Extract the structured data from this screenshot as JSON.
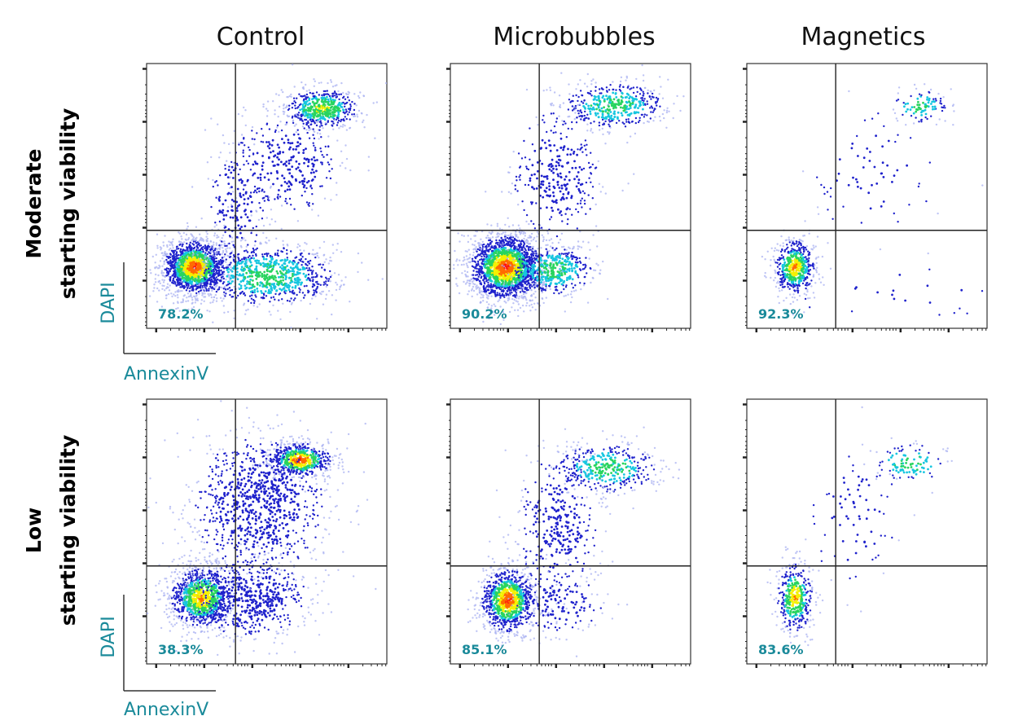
{
  "figure": {
    "columns": [
      "Control",
      "Microbubbles",
      "Magnetics"
    ],
    "rows": [
      {
        "line1": "Moderate",
        "line2": "starting viability"
      },
      {
        "line1": "Low",
        "line2": "starting viability"
      }
    ],
    "y_axis_label": "DAPI",
    "x_axis_label": "AnnexinV",
    "colors": {
      "label": "#1a8a9a",
      "low_density": "#aab2f2",
      "mid_density": "#1f22cc",
      "peak_ramp": [
        "#16c6e0",
        "#28d45e",
        "#f5f000",
        "#ff6a00",
        "#ff1010"
      ]
    }
  },
  "chart_data": [
    {
      "type": "scatter",
      "row": "Moderate starting viability",
      "column": "Control",
      "xlabel": "AnnexinV",
      "ylabel": "DAPI",
      "quadrant_annotation": "78.2%",
      "populations": [
        {
          "x": 0.2,
          "y": 0.23,
          "sx": 0.07,
          "sy": 0.055,
          "n": 1500,
          "hot": 4
        },
        {
          "x": 0.5,
          "y": 0.2,
          "sx": 0.15,
          "sy": 0.06,
          "n": 900,
          "hot": 1
        },
        {
          "x": 0.73,
          "y": 0.83,
          "sx": 0.08,
          "sy": 0.04,
          "n": 550,
          "hot": 2
        },
        {
          "x": 0.58,
          "y": 0.62,
          "sx": 0.12,
          "sy": 0.1,
          "n": 320,
          "hot": 0
        },
        {
          "x": 0.38,
          "y": 0.48,
          "sx": 0.07,
          "sy": 0.12,
          "n": 160,
          "hot": 0
        }
      ]
    },
    {
      "type": "scatter",
      "row": "Moderate starting viability",
      "column": "Microbubbles",
      "xlabel": "AnnexinV",
      "ylabel": "DAPI",
      "quadrant_annotation": "90.2%",
      "populations": [
        {
          "x": 0.23,
          "y": 0.23,
          "sx": 0.08,
          "sy": 0.065,
          "n": 1900,
          "hot": 4
        },
        {
          "x": 0.43,
          "y": 0.22,
          "sx": 0.09,
          "sy": 0.05,
          "n": 450,
          "hot": 1
        },
        {
          "x": 0.68,
          "y": 0.84,
          "sx": 0.11,
          "sy": 0.045,
          "n": 450,
          "hot": 1
        },
        {
          "x": 0.44,
          "y": 0.58,
          "sx": 0.1,
          "sy": 0.13,
          "n": 320,
          "hot": 0
        }
      ]
    },
    {
      "type": "scatter",
      "row": "Moderate starting viability",
      "column": "Magnetics",
      "xlabel": "AnnexinV",
      "ylabel": "DAPI",
      "quadrant_annotation": "92.3%",
      "populations": [
        {
          "x": 0.2,
          "y": 0.23,
          "sx": 0.045,
          "sy": 0.055,
          "n": 560,
          "hot": 3
        },
        {
          "x": 0.72,
          "y": 0.84,
          "sx": 0.06,
          "sy": 0.035,
          "n": 100,
          "hot": 1
        },
        {
          "x": 0.52,
          "y": 0.58,
          "sx": 0.14,
          "sy": 0.13,
          "n": 70,
          "hot": 0
        },
        {
          "x": 0.62,
          "y": 0.13,
          "sx": 0.26,
          "sy": 0.07,
          "n": 25,
          "hot": 0
        }
      ]
    },
    {
      "type": "scatter",
      "row": "Low starting viability",
      "column": "Control",
      "xlabel": "AnnexinV",
      "ylabel": "DAPI",
      "quadrant_annotation": "38.3%",
      "populations": [
        {
          "x": 0.23,
          "y": 0.25,
          "sx": 0.07,
          "sy": 0.06,
          "n": 1000,
          "hot": 3
        },
        {
          "x": 0.43,
          "y": 0.25,
          "sx": 0.13,
          "sy": 0.08,
          "n": 600,
          "hot": 0
        },
        {
          "x": 0.64,
          "y": 0.77,
          "sx": 0.07,
          "sy": 0.035,
          "n": 600,
          "hot": 4
        },
        {
          "x": 0.47,
          "y": 0.6,
          "sx": 0.15,
          "sy": 0.14,
          "n": 900,
          "hot": 0
        }
      ]
    },
    {
      "type": "scatter",
      "row": "Low starting viability",
      "column": "Microbubbles",
      "xlabel": "AnnexinV",
      "ylabel": "DAPI",
      "quadrant_annotation": "85.1%",
      "populations": [
        {
          "x": 0.24,
          "y": 0.24,
          "sx": 0.06,
          "sy": 0.065,
          "n": 1000,
          "hot": 4
        },
        {
          "x": 0.65,
          "y": 0.74,
          "sx": 0.11,
          "sy": 0.05,
          "n": 400,
          "hot": 1
        },
        {
          "x": 0.45,
          "y": 0.52,
          "sx": 0.09,
          "sy": 0.15,
          "n": 350,
          "hot": 0
        },
        {
          "x": 0.45,
          "y": 0.23,
          "sx": 0.1,
          "sy": 0.06,
          "n": 150,
          "hot": 0
        }
      ]
    },
    {
      "type": "scatter",
      "row": "Low starting viability",
      "column": "Magnetics",
      "xlabel": "AnnexinV",
      "ylabel": "DAPI",
      "quadrant_annotation": "83.6%",
      "populations": [
        {
          "x": 0.2,
          "y": 0.25,
          "sx": 0.04,
          "sy": 0.07,
          "n": 420,
          "hot": 3
        },
        {
          "x": 0.68,
          "y": 0.76,
          "sx": 0.08,
          "sy": 0.04,
          "n": 110,
          "hot": 1
        },
        {
          "x": 0.45,
          "y": 0.55,
          "sx": 0.1,
          "sy": 0.15,
          "n": 80,
          "hot": 0
        }
      ]
    }
  ]
}
